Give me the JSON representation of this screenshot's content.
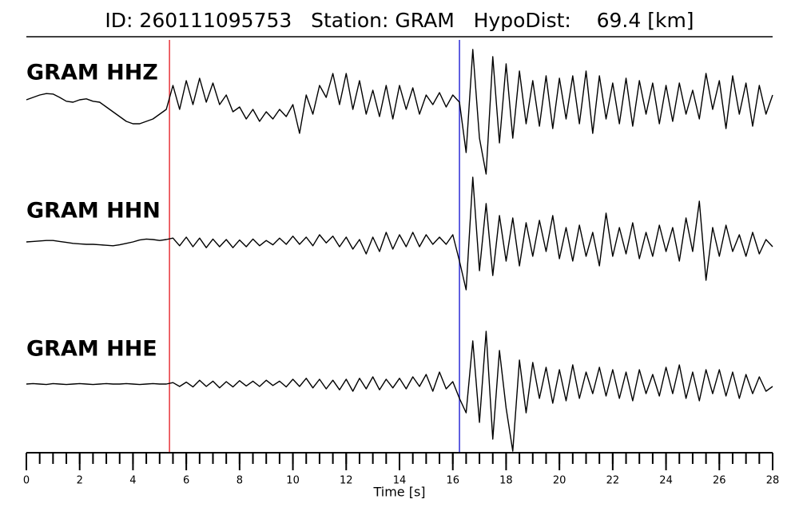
{
  "chart_data": {
    "type": "seismogram",
    "title": "ID: 260111095753   Station: GRAM   HypoDist:    69.4 [km]",
    "xlabel": "Time [s]",
    "xlim": [
      0,
      28
    ],
    "xticks": [
      0,
      2,
      4,
      6,
      8,
      10,
      12,
      14,
      16,
      18,
      20,
      22,
      24,
      26,
      28
    ],
    "xminorticks": [
      0,
      0.5,
      1,
      1.5,
      2,
      2.5,
      3,
      3.5,
      4,
      4.5,
      5,
      5.5,
      6,
      6.5,
      7,
      7.5,
      8,
      8.5,
      9,
      9.5,
      10,
      10.5,
      11,
      11.5,
      12,
      12.5,
      13,
      13.5,
      14,
      14.5,
      15,
      15.5,
      16,
      16.5,
      17,
      17.5,
      18,
      18.5,
      19,
      19.5,
      20,
      20.5,
      21,
      21.5,
      22,
      22.5,
      23,
      23.5,
      24,
      24.5,
      25,
      25.5,
      26,
      26.5,
      27,
      27.5,
      28
    ],
    "label_color": "#4c9a0a",
    "picks": [
      {
        "time": 5.37,
        "color": "#e8343a"
      },
      {
        "time": 16.25,
        "color": "#2b2bd6"
      }
    ],
    "x": [
      0,
      0.25,
      0.5,
      0.75,
      1,
      1.25,
      1.5,
      1.75,
      2,
      2.25,
      2.5,
      2.75,
      3,
      3.25,
      3.5,
      3.75,
      4,
      4.25,
      4.5,
      4.75,
      5,
      5.25,
      5.5,
      5.75,
      6,
      6.25,
      6.5,
      6.75,
      7,
      7.25,
      7.5,
      7.75,
      8,
      8.25,
      8.5,
      8.75,
      9,
      9.25,
      9.5,
      9.75,
      10,
      10.25,
      10.5,
      10.75,
      11,
      11.25,
      11.5,
      11.75,
      12,
      12.25,
      12.5,
      12.75,
      13,
      13.25,
      13.5,
      13.75,
      14,
      14.25,
      14.5,
      14.75,
      15,
      15.25,
      15.5,
      15.75,
      16,
      16.25,
      16.5,
      16.75,
      17,
      17.25,
      17.5,
      17.75,
      18,
      18.25,
      18.5,
      18.75,
      19,
      19.25,
      19.5,
      19.75,
      20,
      20.25,
      20.5,
      20.75,
      21,
      21.25,
      21.5,
      21.75,
      22,
      22.25,
      22.5,
      22.75,
      23,
      23.25,
      23.5,
      23.75,
      24,
      24.25,
      24.5,
      24.75,
      25,
      25.25,
      25.5,
      25.75,
      26,
      26.25,
      26.5,
      26.75,
      27,
      27.25,
      27.5,
      27.75,
      28
    ],
    "series": [
      {
        "name": "GRAM HHZ",
        "color": "#000000",
        "values": [
          0,
          0.05,
          0.1,
          0.13,
          0.12,
          0.05,
          -0.03,
          -0.05,
          0,
          0.02,
          -0.03,
          -0.05,
          -0.15,
          -0.25,
          -0.35,
          -0.45,
          -0.5,
          -0.5,
          -0.45,
          -0.4,
          -0.3,
          -0.2,
          0.3,
          -0.2,
          0.4,
          -0.1,
          0.45,
          -0.05,
          0.35,
          -0.1,
          0.1,
          -0.25,
          -0.15,
          -0.4,
          -0.2,
          -0.45,
          -0.25,
          -0.4,
          -0.2,
          -0.35,
          -0.1,
          -0.7,
          0.1,
          -0.3,
          0.3,
          0.05,
          0.55,
          -0.1,
          0.55,
          -0.2,
          0.4,
          -0.3,
          0.2,
          -0.35,
          0.3,
          -0.4,
          0.3,
          -0.2,
          0.25,
          -0.3,
          0.1,
          -0.1,
          0.15,
          -0.15,
          0.1,
          -0.05,
          -1.1,
          1.05,
          -0.8,
          -1.55,
          0.9,
          -0.9,
          0.75,
          -0.8,
          0.6,
          -0.5,
          0.4,
          -0.55,
          0.5,
          -0.6,
          0.45,
          -0.4,
          0.5,
          -0.5,
          0.6,
          -0.7,
          0.5,
          -0.4,
          0.35,
          -0.5,
          0.45,
          -0.55,
          0.4,
          -0.3,
          0.35,
          -0.5,
          0.3,
          -0.45,
          0.35,
          -0.3,
          0.2,
          -0.4,
          0.55,
          -0.2,
          0.4,
          -0.6,
          0.5,
          -0.3,
          0.35,
          -0.55,
          0.3,
          -0.3,
          0.1
        ]
      },
      {
        "name": "GRAM HHN",
        "color": "#000000",
        "values": [
          0,
          0.01,
          0.02,
          0.03,
          0.03,
          0.01,
          -0.01,
          -0.03,
          -0.04,
          -0.05,
          -0.05,
          -0.06,
          -0.07,
          -0.08,
          -0.06,
          -0.03,
          0,
          0.04,
          0.06,
          0.05,
          0.03,
          0.05,
          0.08,
          -0.08,
          0.1,
          -0.1,
          0.08,
          -0.12,
          0.06,
          -0.1,
          0.05,
          -0.12,
          0.04,
          -0.1,
          0.06,
          -0.08,
          0.03,
          -0.06,
          0.08,
          -0.05,
          0.12,
          -0.05,
          0.1,
          -0.08,
          0.15,
          -0.02,
          0.12,
          -0.1,
          0.1,
          -0.15,
          0.05,
          -0.25,
          0.1,
          -0.2,
          0.2,
          -0.15,
          0.15,
          -0.1,
          0.2,
          -0.1,
          0.15,
          -0.05,
          0.1,
          -0.05,
          0.15,
          -0.4,
          -1.0,
          1.35,
          -0.6,
          0.8,
          -0.7,
          0.55,
          -0.4,
          0.5,
          -0.5,
          0.4,
          -0.3,
          0.45,
          -0.2,
          0.55,
          -0.35,
          0.3,
          -0.4,
          0.35,
          -0.3,
          0.2,
          -0.5,
          0.6,
          -0.3,
          0.3,
          -0.25,
          0.4,
          -0.35,
          0.2,
          -0.3,
          0.35,
          -0.2,
          0.3,
          -0.4,
          0.5,
          -0.2,
          0.85,
          -0.8,
          0.3,
          -0.3,
          0.35,
          -0.2,
          0.15,
          -0.3,
          0.2,
          -0.25,
          0.05,
          -0.1
        ]
      },
      {
        "name": "GRAM HHE",
        "color": "#000000",
        "values": [
          0,
          0.01,
          0,
          -0.01,
          0.01,
          0,
          -0.01,
          0,
          0.01,
          0,
          -0.01,
          0,
          0.01,
          0,
          0,
          0.01,
          0,
          -0.01,
          0,
          0.01,
          0,
          0,
          0.03,
          -0.05,
          0.04,
          -0.06,
          0.08,
          -0.05,
          0.06,
          -0.08,
          0.05,
          -0.06,
          0.07,
          -0.04,
          0.06,
          -0.05,
          0.08,
          -0.03,
          0.06,
          -0.06,
          0.1,
          -0.05,
          0.12,
          -0.08,
          0.1,
          -0.1,
          0.08,
          -0.12,
          0.1,
          -0.15,
          0.12,
          -0.1,
          0.15,
          -0.12,
          0.1,
          -0.08,
          0.12,
          -0.1,
          0.15,
          -0.05,
          0.2,
          -0.15,
          0.25,
          -0.1,
          0.05,
          -0.3,
          -0.6,
          0.9,
          -0.8,
          1.1,
          -1.15,
          0.7,
          -0.5,
          -1.4,
          0.5,
          -0.6,
          0.45,
          -0.3,
          0.35,
          -0.4,
          0.3,
          -0.35,
          0.4,
          -0.3,
          0.25,
          -0.2,
          0.35,
          -0.25,
          0.3,
          -0.3,
          0.25,
          -0.35,
          0.3,
          -0.2,
          0.2,
          -0.25,
          0.35,
          -0.2,
          0.4,
          -0.3,
          0.25,
          -0.35,
          0.3,
          -0.2,
          0.3,
          -0.25,
          0.25,
          -0.3,
          0.2,
          -0.2,
          0.15,
          -0.15,
          -0.05
        ]
      }
    ]
  }
}
